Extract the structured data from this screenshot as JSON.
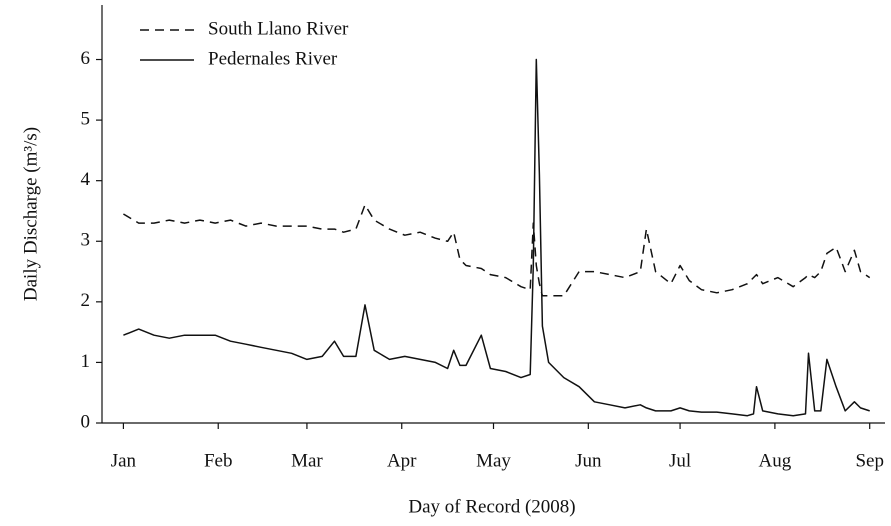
{
  "chart_data": {
    "type": "line",
    "x_label": "Day of Record (2008)",
    "y_label": "Daily Discharge (m³/s)",
    "x": [
      1,
      6,
      11,
      16,
      21,
      26,
      31,
      36,
      41,
      46,
      51,
      56,
      61,
      66,
      70,
      73,
      77,
      80,
      83,
      88,
      93,
      98,
      103,
      107,
      109,
      111,
      113,
      118,
      121,
      126,
      131,
      134,
      135,
      136,
      137,
      138,
      140,
      145,
      150,
      155,
      160,
      165,
      170,
      172,
      175,
      180,
      183,
      186,
      190,
      195,
      200,
      205,
      207,
      208,
      210,
      215,
      220,
      224,
      225,
      227,
      229,
      231,
      234,
      237,
      240,
      242,
      245
    ],
    "series": [
      {
        "name": "South Llano River",
        "color": "#111111",
        "linestyle": "dashed",
        "values": [
          3.45,
          3.3,
          3.3,
          3.35,
          3.3,
          3.35,
          3.3,
          3.35,
          3.25,
          3.3,
          3.25,
          3.25,
          3.25,
          3.2,
          3.2,
          3.15,
          3.2,
          3.6,
          3.35,
          3.2,
          3.1,
          3.15,
          3.05,
          3.0,
          3.15,
          2.7,
          2.6,
          2.55,
          2.45,
          2.4,
          2.25,
          2.2,
          3.3,
          2.6,
          2.3,
          2.1,
          2.1,
          2.1,
          2.5,
          2.5,
          2.45,
          2.4,
          2.5,
          3.2,
          2.5,
          2.3,
          2.6,
          2.35,
          2.2,
          2.15,
          2.2,
          2.3,
          2.4,
          2.45,
          2.3,
          2.4,
          2.25,
          2.4,
          2.45,
          2.4,
          2.5,
          2.8,
          2.9,
          2.5,
          2.85,
          2.5,
          2.4
        ]
      },
      {
        "name": "Pedernales River",
        "color": "#111111",
        "linestyle": "solid",
        "values": [
          1.45,
          1.55,
          1.45,
          1.4,
          1.45,
          1.45,
          1.45,
          1.35,
          1.3,
          1.25,
          1.2,
          1.15,
          1.05,
          1.1,
          1.35,
          1.1,
          1.1,
          1.95,
          1.2,
          1.05,
          1.1,
          1.05,
          1.0,
          0.9,
          1.2,
          0.95,
          0.95,
          1.45,
          0.9,
          0.85,
          0.75,
          0.8,
          2.6,
          6.0,
          4.1,
          1.6,
          1.0,
          0.75,
          0.6,
          0.35,
          0.3,
          0.25,
          0.3,
          0.25,
          0.2,
          0.2,
          0.25,
          0.2,
          0.18,
          0.18,
          0.15,
          0.12,
          0.15,
          0.6,
          0.2,
          0.15,
          0.12,
          0.15,
          1.15,
          0.2,
          0.2,
          1.05,
          0.6,
          0.2,
          0.35,
          0.25,
          0.2
        ]
      }
    ],
    "xlim": [
      -6,
      250
    ],
    "xticks": [
      {
        "value": 1,
        "label": "Jan"
      },
      {
        "value": 32,
        "label": "Feb"
      },
      {
        "value": 61,
        "label": "Mar"
      },
      {
        "value": 92,
        "label": "Apr"
      },
      {
        "value": 122,
        "label": "May"
      },
      {
        "value": 153,
        "label": "Jun"
      },
      {
        "value": 183,
        "label": "Jul"
      },
      {
        "value": 214,
        "label": "Aug"
      },
      {
        "value": 245,
        "label": "Sep"
      }
    ],
    "ylim": [
      0,
      6.9
    ],
    "yticks": [
      0,
      1,
      2,
      3,
      4,
      5,
      6
    ],
    "legend": "upper left",
    "grid": false
  }
}
